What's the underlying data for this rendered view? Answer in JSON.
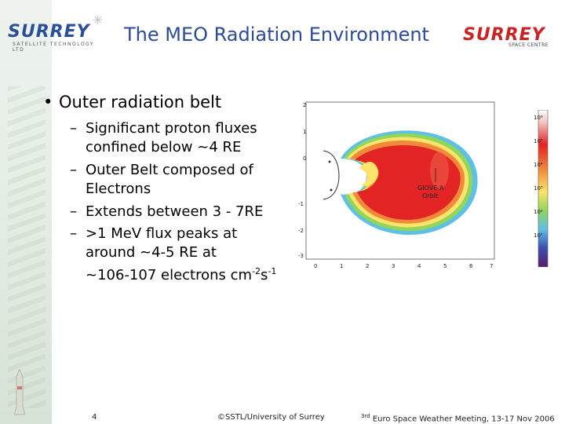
{
  "header": {
    "title": "The MEO Radiation Environment",
    "logo_left": {
      "word": "SURREY",
      "sub": "SATELLITE TECHNOLOGY LTD"
    },
    "logo_right": {
      "word": "SURREY",
      "sub": "SPACE CENTRE"
    }
  },
  "slide": {
    "bullet": {
      "text": "Outer radiation belt",
      "symbol": "•"
    },
    "items": [
      {
        "dash": "–",
        "line1": "Significant proton fluxes",
        "line2": "confined below ~4 RE"
      },
      {
        "dash": "–",
        "line1": "Outer Belt composed of",
        "line2": "Electrons"
      },
      {
        "dash": "–",
        "line1": "Extends between 3 - 7RE",
        "line2": ""
      },
      {
        "dash": "–",
        "line1": ">1 MeV flux peaks at",
        "line2": "around ~4-5 RE at",
        "line3": "~106-107 electrons cm",
        "sup1": "-2",
        "mid": "s",
        "sup2": "-1"
      }
    ]
  },
  "figure": {
    "orbit_label_1": "GIOVE-A",
    "orbit_label_2": "Orbit",
    "x_ticks": [
      "0",
      "1",
      "2",
      "3",
      "4",
      "5",
      "6",
      "7"
    ],
    "y_ticks": [
      "2",
      "1",
      "0",
      "-1",
      "-2",
      "-3"
    ],
    "colorbar_ticks": [
      "10⁶",
      "10⁵",
      "10⁴",
      "10³",
      "10²",
      "10¹"
    ],
    "colors": {
      "high": "#e22424",
      "mid": "#f08a3a",
      "low": "#ffe36a",
      "lower": "#8fd65a",
      "lowest": "#5fc0e6",
      "bg": "#ffffff"
    }
  },
  "footer": {
    "page": "4",
    "copyright": "©SSTL/University of Surrey",
    "conf_sup": "3rd",
    "conf_text": " Euro Space Weather Meeting, 13-17 Nov 2006"
  }
}
